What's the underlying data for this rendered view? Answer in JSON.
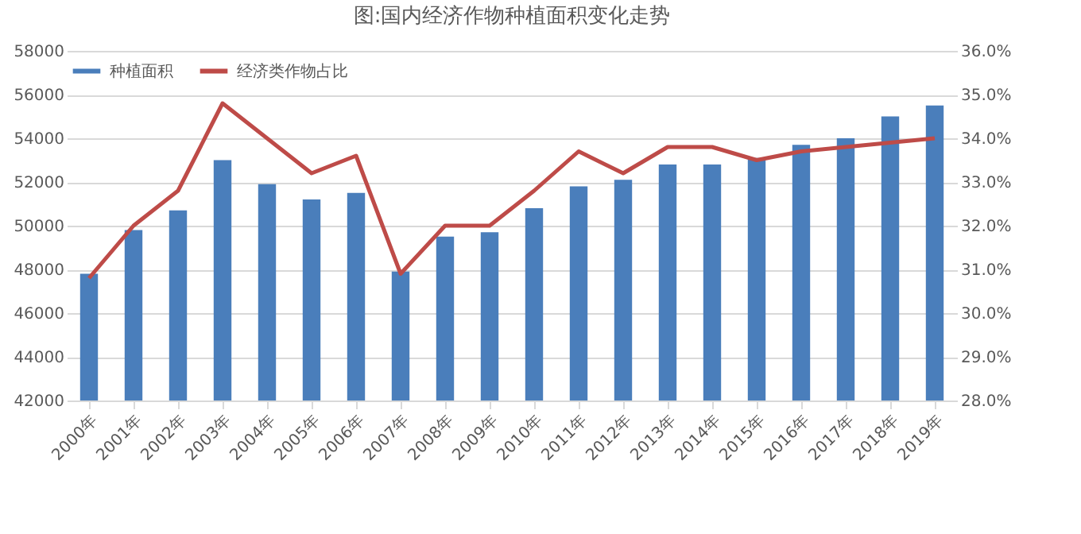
{
  "chart_data": {
    "type": "bar",
    "title": "图:国内经济作物种植面积变化走势",
    "categories": [
      "2000年",
      "2001年",
      "2002年",
      "2003年",
      "2004年",
      "2005年",
      "2006年",
      "2007年",
      "2008年",
      "2009年",
      "2010年",
      "2011年",
      "2012年",
      "2013年",
      "2014年",
      "2015年",
      "2016年",
      "2017年",
      "2018年",
      "2019年"
    ],
    "series": [
      {
        "name": "种植面积",
        "color": "#4a7ebb",
        "values": [
          47800,
          49800,
          50700,
          53000,
          51900,
          51200,
          51500,
          47900,
          49500,
          49700,
          50800,
          51800,
          52100,
          52800,
          52800,
          53100,
          53700,
          54000,
          55000,
          55500
        ]
      },
      {
        "name": "经济类作物占比",
        "type": "line",
        "axis": "y2",
        "color": "#be4b48",
        "values": [
          30.8,
          32.0,
          32.8,
          34.8,
          34.0,
          33.2,
          33.6,
          30.9,
          32.0,
          32.0,
          32.8,
          33.7,
          33.2,
          33.8,
          33.8,
          33.5,
          33.7,
          33.8,
          33.9,
          34.0
        ]
      }
    ],
    "ylim": [
      42000,
      58000
    ],
    "yticks": [
      42000,
      44000,
      46000,
      48000,
      50000,
      52000,
      54000,
      56000,
      58000
    ],
    "y2lim": [
      28,
      36
    ],
    "y2ticks": [
      {
        "value": 28,
        "label": "28.0%"
      },
      {
        "value": 29,
        "label": "29.0%"
      },
      {
        "value": 30,
        "label": "30.0%"
      },
      {
        "value": 31,
        "label": "31.0%"
      },
      {
        "value": 32,
        "label": "32.0%"
      },
      {
        "value": 33,
        "label": "33.0%"
      },
      {
        "value": 34,
        "label": "34.0%"
      },
      {
        "value": 35,
        "label": "35.0%"
      },
      {
        "value": 36,
        "label": "36.0%"
      }
    ],
    "grid": "y",
    "legend": "top left"
  }
}
